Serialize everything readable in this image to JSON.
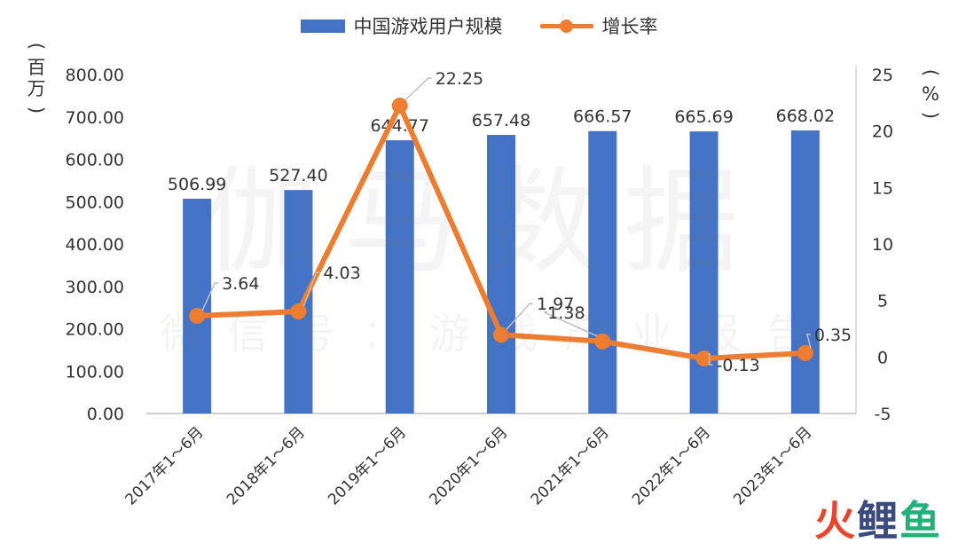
{
  "chart_data": {
    "type": "bar+line",
    "categories": [
      "2017年1～6月",
      "2018年1～6月",
      "2019年1～6月",
      "2020年1～6月",
      "2021年1～6月",
      "2022年1～6月",
      "2023年1～6月"
    ],
    "series": [
      {
        "name": "中国游戏用户规模",
        "type": "bar",
        "axis": "left",
        "color": "#4472C4",
        "values": [
          506.99,
          527.4,
          644.77,
          657.48,
          666.57,
          665.69,
          668.02
        ],
        "labels": [
          "506.99",
          "527.40",
          "644.77",
          "657.48",
          "666.57",
          "665.69",
          "668.02"
        ]
      },
      {
        "name": "增长率",
        "type": "line",
        "axis": "right",
        "color": "#ED7D31",
        "values": [
          3.64,
          4.03,
          22.25,
          1.97,
          1.38,
          -0.13,
          0.35
        ],
        "labels": [
          "3.64",
          "4.03",
          "22.25",
          "1.97",
          "1.38",
          "-0.13",
          "0.35"
        ]
      }
    ],
    "y_left": {
      "label": "百万",
      "ylim": [
        0,
        800
      ],
      "ticks": [
        "0.00",
        "100.00",
        "200.00",
        "300.00",
        "400.00",
        "500.00",
        "600.00",
        "700.00",
        "800.00"
      ]
    },
    "y_right": {
      "label": "%",
      "ylim": [
        -5,
        25
      ],
      "ticks": [
        "-5",
        "0",
        "5",
        "10",
        "15",
        "20",
        "25"
      ]
    },
    "legend_position": "top-center",
    "grid": false
  },
  "watermark": {
    "main": "伽马数据",
    "sub": "微信号：游戏产业报告"
  },
  "logo": {
    "part1": "火",
    "part2": "鲤",
    "part3": "鱼"
  }
}
